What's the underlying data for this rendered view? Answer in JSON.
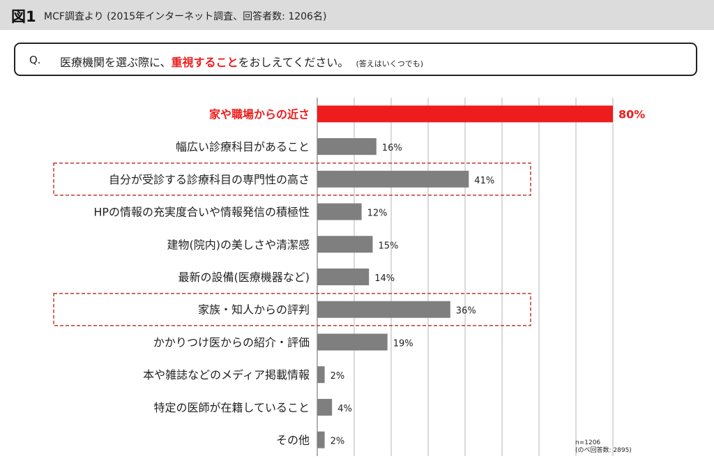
{
  "header": {
    "figure_label": "図1",
    "subtitle": "MCF調査より (2015年インターネット調査、回答者数: 1206名)"
  },
  "question": {
    "label": "Q.",
    "text_before": "医療機関を選ぶ際に、",
    "text_emphasis": "重視すること",
    "text_after": "をおしえてください。",
    "note": "(答えはいくつでも)"
  },
  "footnote": {
    "n": "n=1206",
    "total": "(のべ回答数: 2895)"
  },
  "colors": {
    "highlight": "#ee1c1c",
    "bar": "#7f7f7f",
    "dashed_box": "#c0392b",
    "grid": "#b5b5b5"
  },
  "chart_data": {
    "type": "bar",
    "orientation": "horizontal",
    "xlim": [
      0,
      100
    ],
    "grid": true,
    "categories": [
      "家や職場からの近さ",
      "幅広い診療科目があること",
      "自分が受診する診療科目の専門性の高さ",
      "HPの情報の充実度合いや情報発信の積極性",
      "建物(院内)の美しさや清潔感",
      "最新の設備(医療機器など)",
      "家族・知人からの評判",
      "かかりつけ医からの紹介・評価",
      "本や雑誌などのメディア掲載情報",
      "特定の医師が在籍していること",
      "その他"
    ],
    "values": [
      80,
      16,
      41,
      12,
      15,
      14,
      36,
      19,
      2,
      4,
      2
    ],
    "value_labels": [
      "80%",
      "16%",
      "41%",
      "12%",
      "15%",
      "14%",
      "36%",
      "19%",
      "2%",
      "4%",
      "2%"
    ],
    "highlighted_index": 0,
    "boxed_indices": [
      2,
      6
    ]
  }
}
